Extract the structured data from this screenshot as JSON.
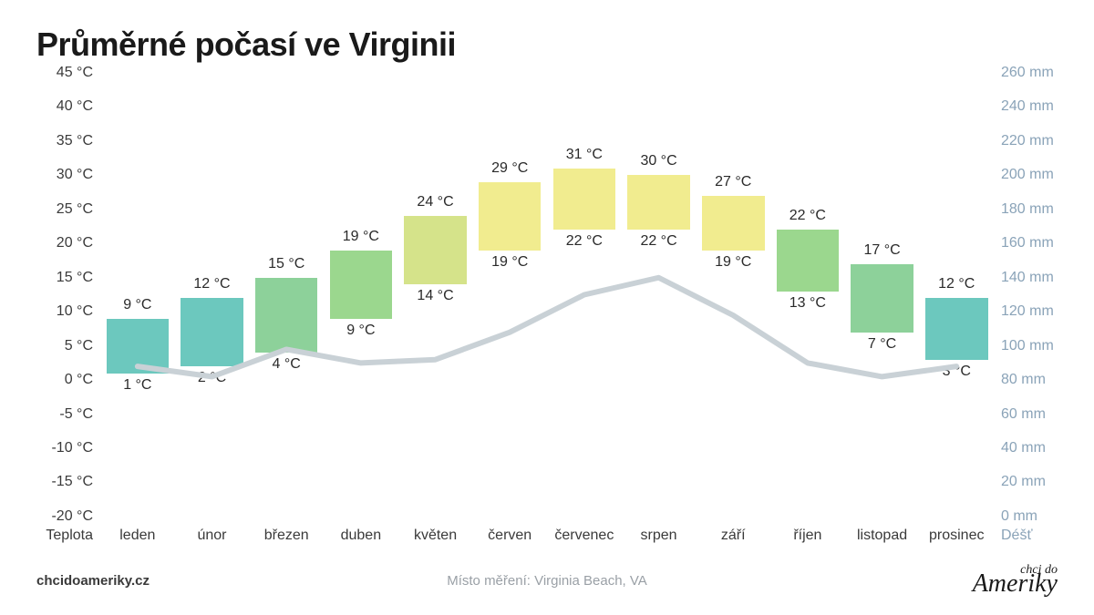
{
  "title": "Průměrné počasí ve Virginii",
  "footer": {
    "left": "chcidoameriky.cz",
    "mid": "Místo měření: Virginia Beach, VA",
    "right_small": "chci do",
    "right_large": "Ameriky"
  },
  "axes": {
    "left_label": "Teplota",
    "right_label": "Déšť",
    "temp_min": -20,
    "temp_max": 45,
    "temp_tick_step": 5,
    "temp_unit": "°C",
    "rain_min": 0,
    "rain_max": 260,
    "rain_tick_step": 20,
    "rain_unit": "mm",
    "left_color": "#3a3a3a",
    "right_color": "#8aa3b8"
  },
  "months": [
    "leden",
    "únor",
    "březen",
    "duben",
    "květen",
    "červen",
    "červenec",
    "srpen",
    "září",
    "říjen",
    "listopad",
    "prosinec"
  ],
  "data": [
    {
      "high": 9,
      "low": 1,
      "rain": 88,
      "color": "#6cc8be"
    },
    {
      "high": 12,
      "low": 2,
      "rain": 82,
      "color": "#6cc8be"
    },
    {
      "high": 15,
      "low": 4,
      "rain": 98,
      "color": "#8dd19a"
    },
    {
      "high": 19,
      "low": 9,
      "rain": 90,
      "color": "#9bd78e"
    },
    {
      "high": 24,
      "low": 14,
      "rain": 92,
      "color": "#d5e38a"
    },
    {
      "high": 29,
      "low": 19,
      "rain": 108,
      "color": "#f1ec8f"
    },
    {
      "high": 31,
      "low": 22,
      "rain": 130,
      "color": "#f1ec8f"
    },
    {
      "high": 30,
      "low": 22,
      "rain": 140,
      "color": "#f1ec8f"
    },
    {
      "high": 27,
      "low": 19,
      "rain": 118,
      "color": "#f1ec8f"
    },
    {
      "high": 22,
      "low": 13,
      "rain": 90,
      "color": "#9bd78e"
    },
    {
      "high": 17,
      "low": 7,
      "rain": 82,
      "color": "#8dd19a"
    },
    {
      "high": 12,
      "low": 3,
      "rain": 88,
      "color": "#6cc8be"
    }
  ],
  "style": {
    "background": "#ffffff",
    "title_fontsize": 36,
    "tick_fontsize": 16,
    "month_fontsize": 16,
    "label_fontsize": 16,
    "bar_width_pct": 84,
    "rain_line_color": "#c9d1d6",
    "rain_line_width": 6,
    "rain_line_cap": "round",
    "text_color": "#2a2a2a"
  }
}
